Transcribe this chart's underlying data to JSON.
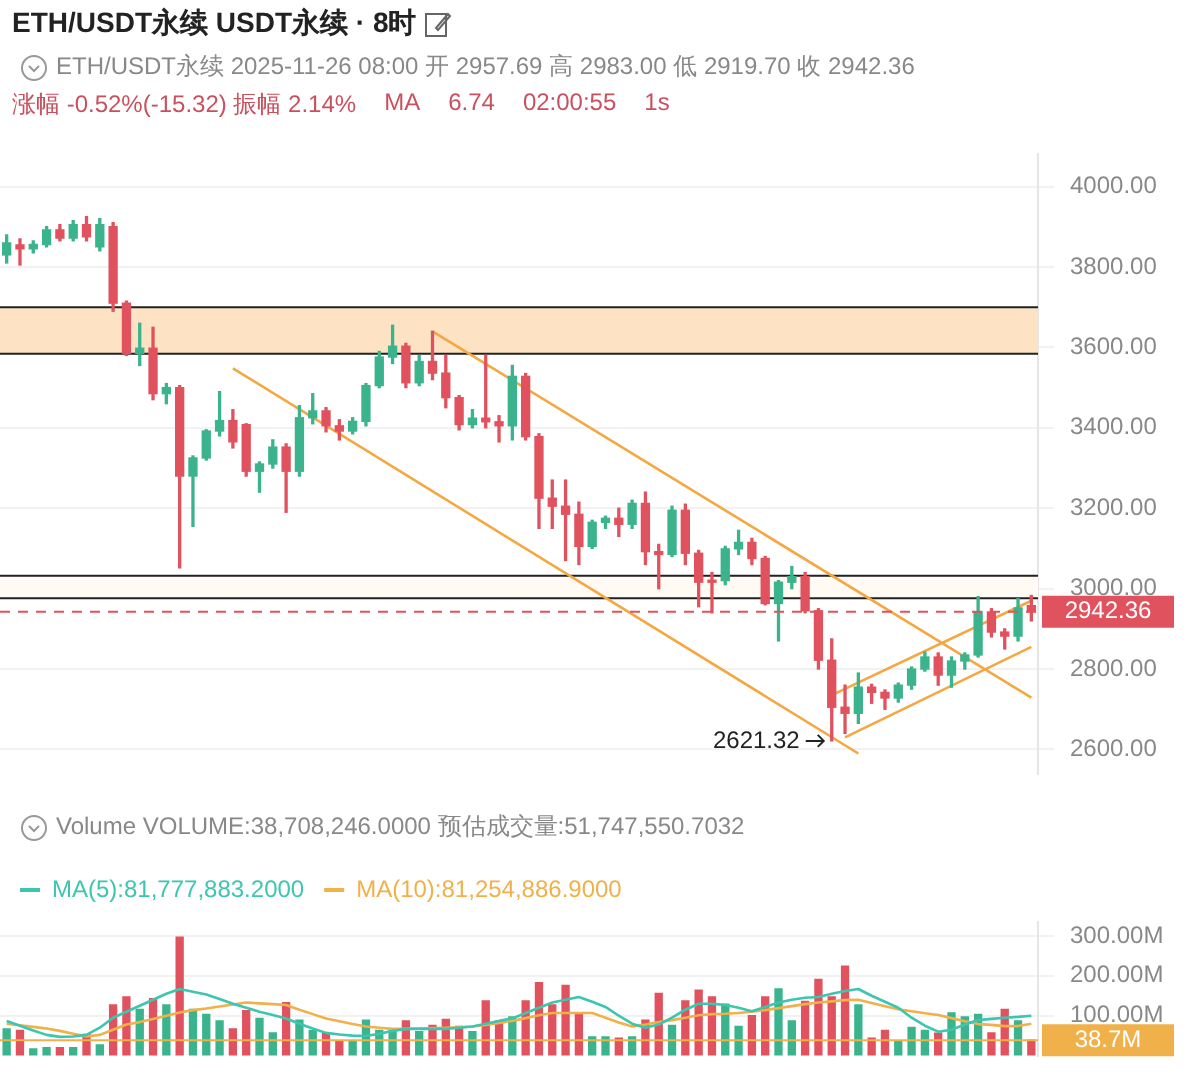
{
  "chart_data": [
    {
      "type": "candlestick",
      "title": "ETH/USDT永续 USDT永续 · 8时",
      "subtitle": "ETH/USDT永续 2025-11-26 08:00 开 2957.69 高 2983.00 低 2919.70 收 2942.36",
      "categories": [
        null,
        null,
        null,
        null,
        null,
        null,
        null,
        null,
        null,
        null,
        null,
        null,
        null,
        null,
        null,
        null,
        null,
        null,
        null,
        null,
        null,
        null,
        null,
        null,
        null,
        null,
        null,
        null,
        null,
        null,
        null,
        null,
        null,
        null,
        null,
        null,
        null,
        null,
        null,
        null,
        null,
        null,
        null,
        null,
        null,
        null,
        null,
        null,
        null,
        null,
        null,
        null,
        null,
        null,
        null,
        null,
        null,
        null,
        null,
        null,
        null,
        null,
        null,
        null,
        null,
        null,
        null,
        null,
        null,
        null,
        null,
        null,
        null,
        null,
        null,
        null,
        null,
        null
      ],
      "ohlc": [
        [
          3830,
          3880,
          3810,
          3860
        ],
        [
          3855,
          3870,
          3805,
          3845
        ],
        [
          3845,
          3865,
          3835,
          3856
        ],
        [
          3856,
          3900,
          3850,
          3892
        ],
        [
          3892,
          3905,
          3865,
          3872
        ],
        [
          3872,
          3915,
          3865,
          3905
        ],
        [
          3905,
          3925,
          3865,
          3875
        ],
        [
          3850,
          3920,
          3840,
          3905
        ],
        [
          3900,
          3910,
          3690,
          3710
        ],
        [
          3710,
          3715,
          3580,
          3585
        ],
        [
          3585,
          3660,
          3555,
          3598
        ],
        [
          3598,
          3650,
          3470,
          3485
        ],
        [
          3485,
          3510,
          3460,
          3500
        ],
        [
          3500,
          3505,
          3052,
          3280
        ],
        [
          3280,
          3330,
          3155,
          3325
        ],
        [
          3325,
          3395,
          3320,
          3392
        ],
        [
          3392,
          3490,
          3380,
          3418
        ],
        [
          3418,
          3445,
          3350,
          3365
        ],
        [
          3408,
          3410,
          3280,
          3292
        ],
        [
          3292,
          3315,
          3240,
          3310
        ],
        [
          3310,
          3370,
          3300,
          3352
        ],
        [
          3352,
          3360,
          3190,
          3292
        ],
        [
          3292,
          3455,
          3280,
          3425
        ],
        [
          3425,
          3485,
          3410,
          3442
        ],
        [
          3442,
          3450,
          3390,
          3405
        ],
        [
          3405,
          3420,
          3370,
          3392
        ],
        [
          3392,
          3425,
          3385,
          3416
        ],
        [
          3416,
          3510,
          3405,
          3505
        ],
        [
          3505,
          3590,
          3500,
          3576
        ],
        [
          3576,
          3655,
          3560,
          3603
        ],
        [
          3603,
          3610,
          3500,
          3512
        ],
        [
          3512,
          3580,
          3505,
          3565
        ],
        [
          3565,
          3640,
          3520,
          3536
        ],
        [
          3536,
          3580,
          3450,
          3475
        ],
        [
          3475,
          3480,
          3395,
          3408
        ],
        [
          3408,
          3445,
          3400,
          3424
        ],
        [
          3424,
          3580,
          3400,
          3415
        ],
        [
          3415,
          3430,
          3365,
          3405
        ],
        [
          3405,
          3555,
          3370,
          3528
        ],
        [
          3528,
          3535,
          3370,
          3378
        ],
        [
          3378,
          3385,
          3150,
          3225
        ],
        [
          3225,
          3270,
          3150,
          3205
        ],
        [
          3205,
          3270,
          3070,
          3185
        ],
        [
          3185,
          3215,
          3060,
          3105
        ],
        [
          3105,
          3170,
          3100,
          3165
        ],
        [
          3165,
          3180,
          3150,
          3175
        ],
        [
          3175,
          3200,
          3130,
          3160
        ],
        [
          3160,
          3220,
          3150,
          3212
        ],
        [
          3212,
          3240,
          3060,
          3092
        ],
        [
          3092,
          3110,
          3000,
          3085
        ],
        [
          3085,
          3205,
          3080,
          3195
        ],
        [
          3195,
          3210,
          3060,
          3088
        ],
        [
          3088,
          3095,
          2955,
          3016
        ],
        [
          3020,
          3040,
          2940,
          3016
        ],
        [
          3020,
          3105,
          3010,
          3099
        ],
        [
          3099,
          3145,
          3085,
          3115
        ],
        [
          3115,
          3125,
          3060,
          3075
        ],
        [
          3075,
          3080,
          2960,
          2963
        ],
        [
          2963,
          3020,
          2870,
          3016
        ],
        [
          3016,
          3055,
          3000,
          3030
        ],
        [
          3030,
          3040,
          2940,
          2945
        ],
        [
          2945,
          2950,
          2800,
          2822
        ],
        [
          2822,
          2875,
          2621.32,
          2705
        ],
        [
          2705,
          2760,
          2640,
          2690
        ],
        [
          2690,
          2790,
          2665,
          2755
        ],
        [
          2755,
          2762,
          2715,
          2742
        ],
        [
          2742,
          2748,
          2700,
          2728
        ],
        [
          2728,
          2765,
          2718,
          2760
        ],
        [
          2760,
          2805,
          2750,
          2800
        ],
        [
          2800,
          2842,
          2795,
          2830
        ],
        [
          2830,
          2840,
          2760,
          2785
        ],
        [
          2785,
          2830,
          2755,
          2820
        ],
        [
          2820,
          2840,
          2800,
          2835
        ],
        [
          2835,
          2980,
          2830,
          2942
        ],
        [
          2942,
          2950,
          2880,
          2892
        ],
        [
          2892,
          2900,
          2850,
          2882
        ],
        [
          2882,
          2975,
          2870,
          2952
        ],
        [
          2957.69,
          2983.0,
          2919.7,
          2942.36
        ]
      ],
      "colors": [
        "#3bb38d",
        "#e0525e",
        "#3bb38d",
        "#3bb38d",
        "#e0525e",
        "#3bb38d",
        "#e0525e",
        "#3bb38d",
        "#e0525e",
        "#e0525e",
        "#3bb38d",
        "#e0525e",
        "#3bb38d",
        "#e0525e",
        "#3bb38d",
        "#3bb38d",
        "#3bb38d",
        "#e0525e",
        "#e0525e",
        "#3bb38d",
        "#3bb38d",
        "#e0525e",
        "#3bb38d",
        "#3bb38d",
        "#e0525e",
        "#e0525e",
        "#3bb38d",
        "#3bb38d",
        "#3bb38d",
        "#3bb38d",
        "#e0525e",
        "#3bb38d",
        "#e0525e",
        "#e0525e",
        "#e0525e",
        "#3bb38d",
        "#e0525e",
        "#e0525e",
        "#3bb38d",
        "#e0525e",
        "#e0525e",
        "#e0525e",
        "#e0525e",
        "#e0525e",
        "#3bb38d",
        "#3bb38d",
        "#e0525e",
        "#3bb38d",
        "#e0525e",
        "#e0525e",
        "#3bb38d",
        "#e0525e",
        "#e0525e",
        "#e0525e",
        "#3bb38d",
        "#3bb38d",
        "#e0525e",
        "#e0525e",
        "#3bb38d",
        "#3bb38d",
        "#e0525e",
        "#e0525e",
        "#e0525e",
        "#e0525e",
        "#3bb38d",
        "#e0525e",
        "#e0525e",
        "#3bb38d",
        "#3bb38d",
        "#3bb38d",
        "#e0525e",
        "#3bb38d",
        "#3bb38d",
        "#3bb38d",
        "#e0525e",
        "#e0525e",
        "#3bb38d",
        "#e0525e"
      ],
      "series": [
        {
          "type": "line",
          "color": "#f5a742",
          "values": [
            null,
            null,
            null,
            null,
            null,
            null,
            null,
            null,
            null,
            null,
            null,
            null,
            null,
            null,
            null,
            null,
            null,
            null,
            null,
            null,
            null,
            null,
            null,
            null,
            null,
            null,
            null,
            null,
            null,
            null,
            null,
            null,
            3640,
            null,
            null,
            null,
            null,
            null,
            null,
            null,
            null,
            null,
            null,
            null,
            null,
            null,
            null,
            null,
            null,
            null,
            null,
            null,
            null,
            null,
            null,
            null,
            null,
            null,
            null,
            null,
            null,
            null,
            null,
            null,
            null,
            null,
            null,
            null,
            null,
            null,
            null,
            null,
            null,
            null,
            null,
            null,
            null,
            2729
          ]
        },
        {
          "type": "line",
          "color": "#f5a742",
          "values": [
            null,
            null,
            null,
            null,
            null,
            null,
            null,
            null,
            null,
            null,
            null,
            null,
            null,
            null,
            null,
            null,
            null,
            3548,
            null,
            null,
            null,
            null,
            null,
            null,
            null,
            null,
            null,
            null,
            null,
            null,
            null,
            null,
            null,
            null,
            null,
            null,
            null,
            null,
            null,
            null,
            null,
            null,
            null,
            null,
            null,
            null,
            null,
            null,
            null,
            null,
            null,
            null,
            null,
            null,
            null,
            null,
            null,
            null,
            null,
            null,
            null,
            null,
            null,
            null,
            2590,
            null,
            null,
            null,
            null,
            null,
            null,
            null,
            null,
            null,
            null,
            null,
            null,
            null
          ]
        },
        {
          "type": "line",
          "color": "#f5a742",
          "values": [
            null,
            null,
            null,
            null,
            null,
            null,
            null,
            null,
            null,
            null,
            null,
            null,
            null,
            null,
            null,
            null,
            null,
            null,
            null,
            null,
            null,
            null,
            null,
            null,
            null,
            null,
            null,
            null,
            null,
            null,
            null,
            null,
            null,
            null,
            null,
            null,
            null,
            null,
            null,
            null,
            null,
            null,
            null,
            null,
            null,
            null,
            null,
            null,
            null,
            null,
            null,
            null,
            null,
            null,
            null,
            null,
            null,
            null,
            null,
            null,
            null,
            null,
            2735,
            null,
            null,
            null,
            null,
            null,
            null,
            null,
            null,
            null,
            null,
            null,
            null,
            null,
            null,
            2970
          ]
        },
        {
          "type": "line",
          "color": "#f5a742",
          "values": [
            null,
            null,
            null,
            null,
            null,
            null,
            null,
            null,
            null,
            null,
            null,
            null,
            null,
            null,
            null,
            null,
            null,
            null,
            null,
            null,
            null,
            null,
            null,
            null,
            null,
            null,
            null,
            null,
            null,
            null,
            null,
            null,
            null,
            null,
            null,
            null,
            null,
            null,
            null,
            null,
            null,
            null,
            null,
            null,
            null,
            null,
            null,
            null,
            null,
            null,
            null,
            null,
            null,
            null,
            null,
            null,
            null,
            null,
            null,
            null,
            null,
            null,
            null,
            2630,
            null,
            null,
            null,
            null,
            null,
            null,
            null,
            null,
            null,
            null,
            null,
            null,
            null,
            2855
          ]
        }
      ],
      "ylim": [
        2540,
        4080
      ],
      "yticks": [
        {
          "value": 2600,
          "label": "2600.00"
        },
        {
          "value": 2800,
          "label": "2800.00"
        },
        {
          "value": 3000,
          "label": "3000.00"
        },
        {
          "value": 3200,
          "label": "3200.00"
        },
        {
          "value": 3400,
          "label": "3400.00"
        },
        {
          "value": 3600,
          "label": "3600.00"
        },
        {
          "value": 3800,
          "label": "3800.00"
        },
        {
          "value": 4000,
          "label": "4000.00"
        }
      ],
      "bands": [
        {
          "axis": "y",
          "from": 3584,
          "to": 3700,
          "color": "#fde3c4"
        },
        {
          "axis": "y",
          "from": 2976,
          "to": 3032,
          "color": "#fffaf3"
        }
      ],
      "ref_lines": [
        {
          "axis": "y",
          "value": 2942.36,
          "label": "2942.36",
          "color": "#e0525e",
          "line_style": "dashed"
        }
      ],
      "annotations": [
        "涨幅 -0.52%(-15.32) 振幅 2.14%",
        "MA",
        "6.74",
        "02:00:55",
        "1s",
        "2621.32"
      ],
      "grid": "y",
      "tick_labels": "y",
      "marker": "none"
    },
    {
      "type": "bar",
      "title": "Volume VOLUME:38,708,246.0000 预估成交量:51,747,550.7032",
      "categories": [
        null,
        null,
        null,
        null,
        null,
        null,
        null,
        null,
        null,
        null,
        null,
        null,
        null,
        null,
        null,
        null,
        null,
        null,
        null,
        null,
        null,
        null,
        null,
        null,
        null,
        null,
        null,
        null,
        null,
        null,
        null,
        null,
        null,
        null,
        null,
        null,
        null,
        null,
        null,
        null,
        null,
        null,
        null,
        null,
        null,
        null,
        null,
        null,
        null,
        null,
        null,
        null,
        null,
        null,
        null,
        null,
        null,
        null,
        null,
        null,
        null,
        null,
        null,
        null,
        null,
        null,
        null,
        null,
        null,
        null,
        null,
        null,
        null,
        null,
        null,
        null,
        null,
        null
      ],
      "series": [
        {
          "type": "bar",
          "colors": [
            "#3bb38d",
            "#e0525e",
            "#3bb38d",
            "#3bb38d",
            "#e0525e",
            "#3bb38d",
            "#e0525e",
            "#3bb38d",
            "#e0525e",
            "#e0525e",
            "#3bb38d",
            "#e0525e",
            "#3bb38d",
            "#e0525e",
            "#3bb38d",
            "#3bb38d",
            "#3bb38d",
            "#e0525e",
            "#e0525e",
            "#3bb38d",
            "#3bb38d",
            "#e0525e",
            "#3bb38d",
            "#3bb38d",
            "#e0525e",
            "#e0525e",
            "#3bb38d",
            "#3bb38d",
            "#3bb38d",
            "#3bb38d",
            "#e0525e",
            "#3bb38d",
            "#e0525e",
            "#e0525e",
            "#e0525e",
            "#3bb38d",
            "#e0525e",
            "#e0525e",
            "#3bb38d",
            "#e0525e",
            "#e0525e",
            "#e0525e",
            "#e0525e",
            "#e0525e",
            "#3bb38d",
            "#3bb38d",
            "#e0525e",
            "#3bb38d",
            "#e0525e",
            "#e0525e",
            "#3bb38d",
            "#e0525e",
            "#e0525e",
            "#e0525e",
            "#3bb38d",
            "#3bb38d",
            "#e0525e",
            "#e0525e",
            "#3bb38d",
            "#3bb38d",
            "#e0525e",
            "#e0525e",
            "#e0525e",
            "#e0525e",
            "#3bb38d",
            "#e0525e",
            "#e0525e",
            "#3bb38d",
            "#3bb38d",
            "#3bb38d",
            "#e0525e",
            "#3bb38d",
            "#3bb38d",
            "#3bb38d",
            "#e0525e",
            "#e0525e",
            "#3bb38d",
            "#e0525e"
          ],
          "values": [
            67,
            63,
            17,
            20,
            20,
            20,
            53,
            27,
            127,
            147,
            116,
            143,
            127,
            297,
            116,
            103,
            87,
            67,
            113,
            93,
            57,
            133,
            89,
            63,
            56,
            36,
            36,
            89,
            63,
            67,
            87,
            60,
            76,
            91,
            73,
            60,
            137,
            87,
            97,
            137,
            183,
            127,
            176,
            107,
            47,
            47,
            44,
            47,
            89,
            156,
            76,
            137,
            164,
            147,
            129,
            73,
            100,
            147,
            167,
            87,
            136,
            191,
            147,
            224,
            127,
            44,
            63,
            36,
            71,
            63,
            56,
            107,
            97,
            103,
            57,
            116,
            87,
            39
          ]
        },
        {
          "type": "line",
          "name": "MA(5):81,777,883.2000",
          "color": "#3cc6b0",
          "values": [
            87,
            75,
            63,
            52,
            47,
            48,
            52,
            70,
            95,
            110,
            125,
            140,
            155,
            167,
            160,
            153,
            142,
            130,
            120,
            110,
            102,
            93,
            80,
            68,
            57,
            53,
            50,
            49,
            55,
            62,
            67,
            67,
            67,
            67,
            70,
            73,
            80,
            87,
            93,
            107,
            120,
            133,
            140,
            147,
            135,
            122,
            100,
            80,
            70,
            78,
            95,
            115,
            130,
            130,
            127,
            120,
            111,
            122,
            133,
            140,
            145,
            147,
            155,
            162,
            167,
            150,
            135,
            120,
            95,
            75,
            60,
            65,
            78,
            89,
            92,
            95,
            97,
            100
          ]
        },
        {
          "type": "line",
          "name": "MA(10):81,254,886.9000",
          "color": "#f0b04a",
          "values": [
            80,
            76,
            72,
            68,
            62,
            55,
            48,
            52,
            65,
            78,
            84,
            92,
            100,
            108,
            114,
            118,
            123,
            128,
            133,
            131,
            129,
            127,
            115,
            104,
            93,
            86,
            79,
            73,
            70,
            67,
            67,
            68,
            69,
            70,
            71,
            73,
            77,
            82,
            87,
            94,
            101,
            107,
            107,
            107,
            107,
            95,
            83,
            73,
            78,
            84,
            89,
            95,
            101,
            104,
            105,
            107,
            110,
            114,
            119,
            124,
            129,
            133,
            136,
            139,
            140,
            132,
            124,
            116,
            111,
            106,
            102,
            94,
            86,
            79,
            77,
            74,
            74,
            80
          ]
        }
      ],
      "ylim": [
        0,
        335
      ],
      "yticks": [
        {
          "value": 100,
          "label": "100.00M"
        },
        {
          "value": 200,
          "label": "200.00M"
        },
        {
          "value": 300,
          "label": "300.00M"
        }
      ],
      "ref_lines": [
        {
          "axis": "y",
          "value": 38.7,
          "label": "38.7M",
          "color": "#f0b04a"
        }
      ],
      "grid": "y",
      "tick_labels": "y",
      "legend": "top left",
      "marker": "none"
    }
  ]
}
